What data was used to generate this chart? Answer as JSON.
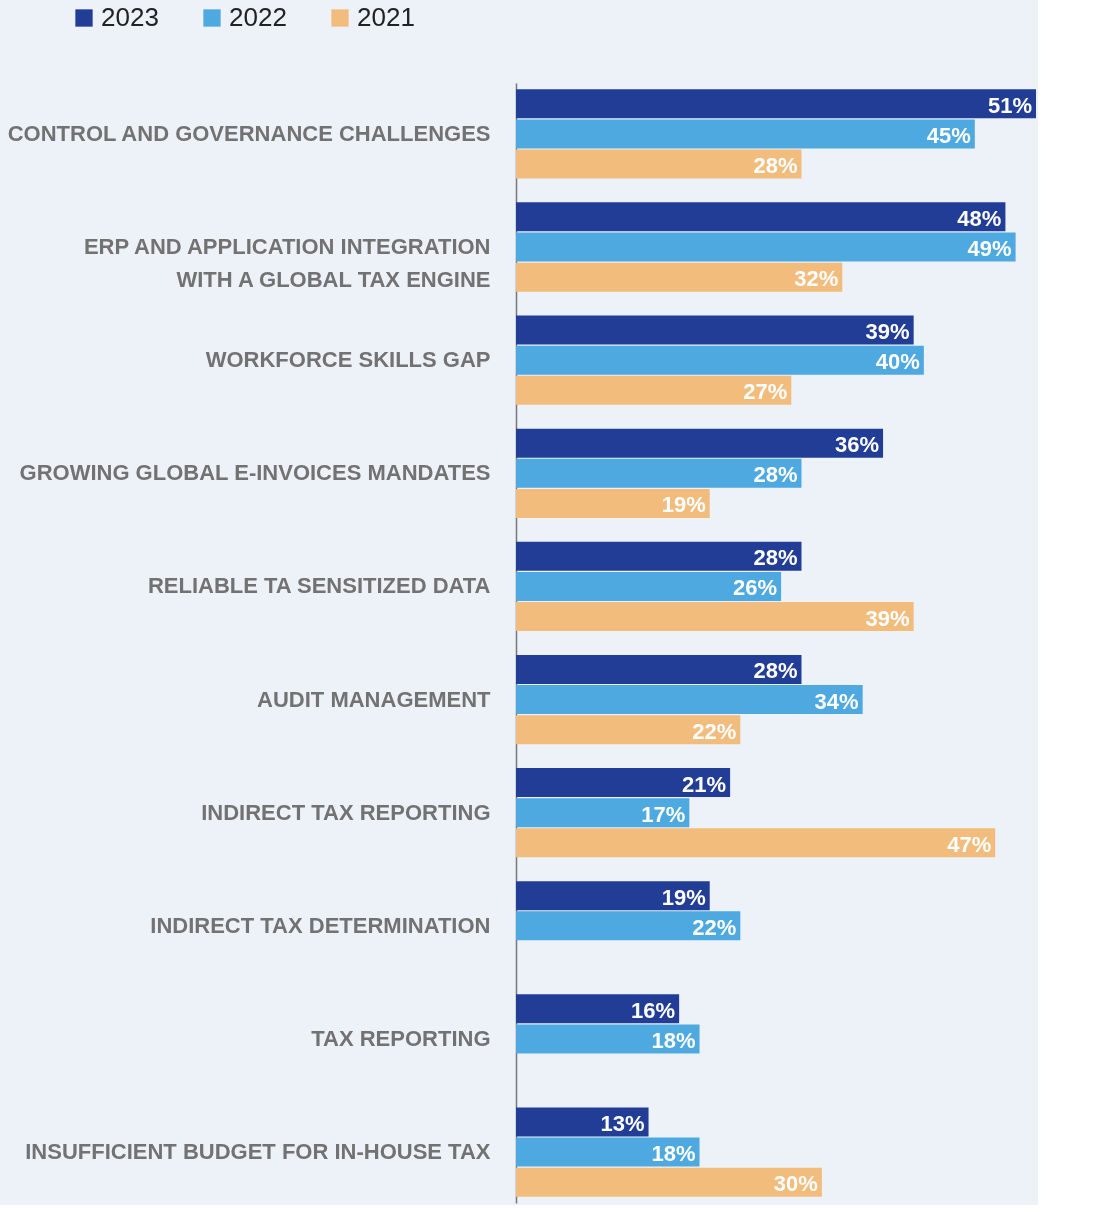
{
  "chart_data": {
    "type": "bar",
    "orientation": "horizontal",
    "legend": "top left",
    "grid": false,
    "categories": [
      "CONTROL AND GOVERNANCE CHALLENGES",
      "ERP AND APPLICATION INTEGRATION WITH A GLOBAL TAX ENGINE",
      "WORKFORCE SKILLS GAP",
      "GROWING GLOBAL E-INVOICES MANDATES",
      "RELIABLE TA SENSITIZED DATA",
      "AUDIT MANAGEMENT",
      "INDIRECT TAX REPORTING",
      "INDIRECT TAX DETERMINATION",
      "TAX REPORTING",
      "INSUFFICIENT BUDGET FOR IN-HOUSE TAX"
    ],
    "series": [
      {
        "name": "2023",
        "color": "#223d96",
        "values": [
          51,
          48,
          39,
          36,
          28,
          28,
          21,
          19,
          16,
          13
        ],
        "value_labels": [
          "51%",
          "48%",
          "39%",
          "36%",
          "28%",
          "28%",
          "21%",
          "19%",
          "16%",
          "13%"
        ]
      },
      {
        "name": "2022",
        "color": "#4ea9e0",
        "values": [
          45,
          49,
          40,
          28,
          26,
          34,
          17,
          22,
          18,
          18
        ],
        "value_labels": [
          "45%",
          "49%",
          "40%",
          "28%",
          "26%",
          "34%",
          "17%",
          "22%",
          "18%",
          "18%"
        ]
      },
      {
        "name": "2021",
        "color": "#f2bc7d",
        "values": [
          28,
          32,
          27,
          19,
          39,
          22,
          47,
          null,
          null,
          30
        ],
        "value_labels": [
          "28%",
          "32%",
          "27%",
          "19%",
          "39%",
          "22%",
          "47%",
          null,
          null,
          "30%"
        ]
      }
    ]
  }
}
